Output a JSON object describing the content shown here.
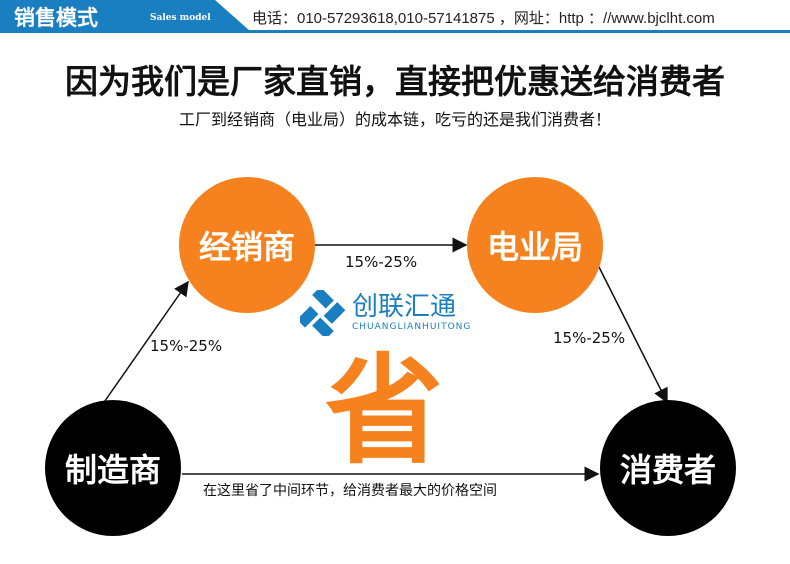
{
  "banner": {
    "title": "销售模式",
    "subtitle": "Sales model"
  },
  "contact": "电话：010-57293618,010-57141875 ，网址：http ：//www.bjclht.com",
  "headline": "因为我们是厂家直销，直接把优惠送给消费者",
  "subheadline": "工厂到经销商（电业局）的成本链，吃亏的还是我们消费者！",
  "nodes": {
    "dealer": "经销商",
    "power_bureau": "电业局",
    "manufacturer": "制造商",
    "consumer": "消费者"
  },
  "margins": {
    "manufacturer_to_dealer": "15%-25%",
    "dealer_to_bureau": "15%-25%",
    "bureau_to_consumer": "15%-25%"
  },
  "direct_note": "在这里省了中间环节，给消费者最大的价格空间",
  "center_char": "省",
  "watermark": {
    "name": "创联汇通",
    "pinyin": "CHUANGLIANHUITONG"
  },
  "colors": {
    "brand_blue": "#1a7fc1",
    "orange": "#f5821f"
  }
}
